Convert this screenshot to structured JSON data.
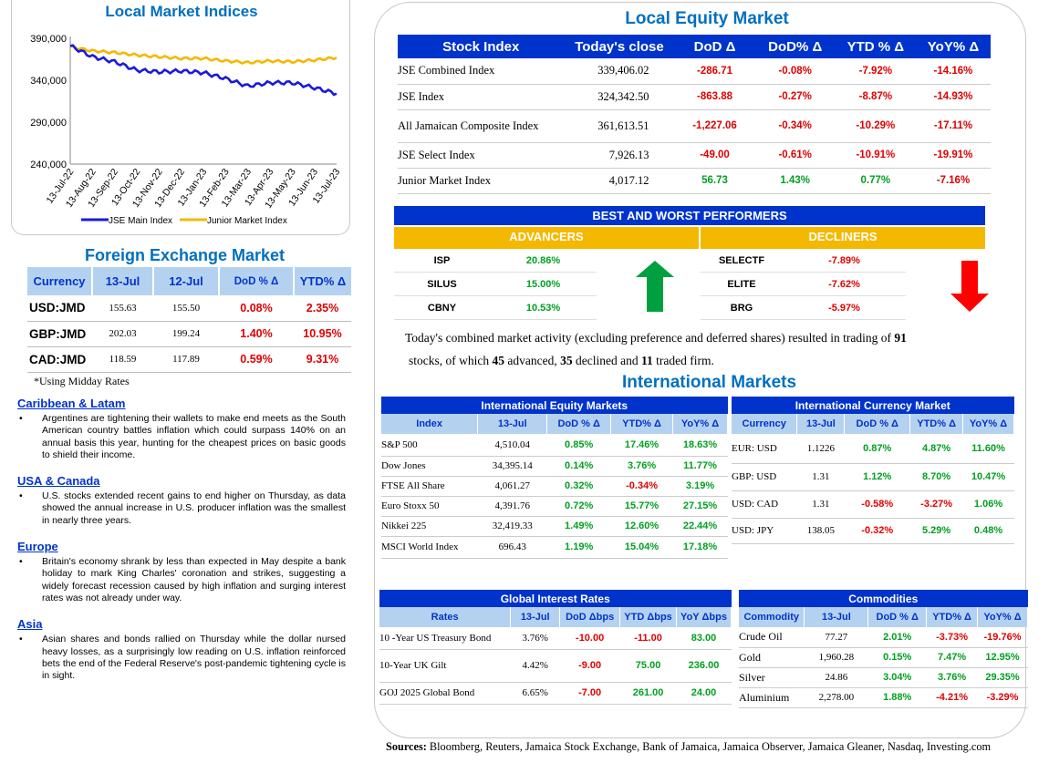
{
  "local_indices": {
    "title": "Local Market Indices",
    "yticks": [
      "390,000",
      "340,000",
      "290,000",
      "240,000"
    ],
    "xticks": [
      "13-Jul-22",
      "13-Aug-22",
      "13-Sep-22",
      "13-Oct-22",
      "13-Nov-22",
      "13-Dec-22",
      "13-Jan-23",
      "13-Feb-23",
      "13-Mar-23",
      "13-Apr-23",
      "13-May-23",
      "13-Jun-23",
      "13-Jul-23"
    ],
    "legend": [
      "JSE Main Index",
      "Junior Market Index"
    ],
    "colors": {
      "jse": "#1a1adc",
      "junior": "#f5b800"
    }
  },
  "chart_data": {
    "type": "line",
    "title": "Local Market Indices",
    "ylim": [
      240000,
      390000
    ],
    "categories": [
      "13-Jul-22",
      "13-Aug-22",
      "13-Sep-22",
      "13-Oct-22",
      "13-Nov-22",
      "13-Dec-22",
      "13-Jan-23",
      "13-Feb-23",
      "13-Mar-23",
      "13-Apr-23",
      "13-May-23",
      "13-Jun-23",
      "13-Jul-23"
    ],
    "series": [
      {
        "name": "JSE Main Index",
        "values": [
          381000,
          368000,
          362000,
          352000,
          350000,
          351000,
          349000,
          342000,
          333000,
          337000,
          337000,
          331000,
          324000
        ]
      },
      {
        "name": "Junior Market Index",
        "values": [
          380000,
          375000,
          373000,
          370000,
          368000,
          366000,
          366000,
          363000,
          361000,
          363000,
          362000,
          364000,
          367000
        ]
      }
    ]
  },
  "fx": {
    "title": "Foreign Exchange Market",
    "headers": [
      "Currency",
      "13-Jul",
      "12-Jul",
      "DoD % Δ",
      "YTD% Δ"
    ],
    "rows": [
      {
        "cur": "USD:JMD",
        "d1": "155.63",
        "d2": "155.50",
        "dod": "0.08%",
        "ytd": "2.35%"
      },
      {
        "cur": "GBP:JMD",
        "d1": "202.03",
        "d2": "199.24",
        "dod": "1.40%",
        "ytd": "10.95%"
      },
      {
        "cur": "CAD:JMD",
        "d1": "118.59",
        "d2": "117.89",
        "dod": "0.59%",
        "ytd": "9.31%"
      }
    ],
    "note": "*Using Midday Rates"
  },
  "news": [
    {
      "heading": "Caribbean & Latam",
      "bullet": "Argentines are tightening their wallets to make end meets as the South American country battles inflation which could surpass 140% on an annual basis this year, hunting for the cheapest prices on basic goods to shield their income."
    },
    {
      "heading": "USA & Canada",
      "bullet": "U.S. stocks extended recent gains to end higher on Thursday, as data showed the annual increase in U.S. producer inflation was the smallest in nearly three years."
    },
    {
      "heading": "Europe",
      "bullet": "Britain's economy shrank by less than expected in May despite a bank holiday to mark King Charles' coronation and strikes, suggesting a widely forecast recession caused by high inflation and surging interest rates was not already under way."
    },
    {
      "heading": "Asia",
      "bullet": "Asian shares and bonds rallied on Thursday while the dollar nursed heavy losses, as a surprisingly low reading on U.S. inflation reinforced bets the end of the Federal Reserve's post-pandemic tightening cycle is in sight."
    }
  ],
  "equity": {
    "title": "Local Equity Market",
    "headers": [
      "Stock Index",
      "Today's close",
      "DoD  Δ",
      "DoD% Δ",
      "YTD % Δ",
      "YoY% Δ"
    ],
    "rows": [
      {
        "name": "JSE Combined Index",
        "close": "339,406.02",
        "dod": "-286.71",
        "dodp": "-0.08%",
        "ytd": "-7.92%",
        "yoy": "-14.16%"
      },
      {
        "name": "JSE Index",
        "close": "324,342.50",
        "dod": "-863.88",
        "dodp": "-0.27%",
        "ytd": "-8.87%",
        "yoy": "-14.93%"
      },
      {
        "name": "All Jamaican Composite Index",
        "close": "361,613.51",
        "dod": "-1,227.06",
        "dodp": "-0.34%",
        "ytd": "-10.29%",
        "yoy": "-17.11%"
      },
      {
        "name": "JSE Select Index",
        "close": "7,926.13",
        "dod": "-49.00",
        "dodp": "-0.61%",
        "ytd": "-10.91%",
        "yoy": "-19.91%"
      },
      {
        "name": "Junior Market Index",
        "close": "4,017.12",
        "dod": "56.73",
        "dodp": "1.43%",
        "ytd": "0.77%",
        "yoy": "-7.16%"
      }
    ],
    "row_colors": [
      [
        "red",
        "red",
        "red",
        "red"
      ],
      [
        "red",
        "red",
        "red",
        "red"
      ],
      [
        "red",
        "red",
        "red",
        "red"
      ],
      [
        "red",
        "red",
        "red",
        "red"
      ],
      [
        "green",
        "green",
        "green",
        "red"
      ]
    ]
  },
  "performers": {
    "title": "BEST AND WORST PERFORMERS",
    "advancers_label": "ADVANCERS",
    "decliners_label": "DECLINERS",
    "advancers": [
      {
        "ticker": "ISP",
        "pct": "20.86%"
      },
      {
        "ticker": "SILUS",
        "pct": "15.00%"
      },
      {
        "ticker": "CBNY",
        "pct": "10.53%"
      }
    ],
    "decliners": [
      {
        "ticker": "SELECTF",
        "pct": "-7.89%"
      },
      {
        "ticker": "ELITE",
        "pct": "-7.62%"
      },
      {
        "ticker": "BRG",
        "pct": "-5.97%"
      }
    ]
  },
  "summary": {
    "line1_a": "Today's combined market activity (excluding preference and deferred shares) resulted in trading of ",
    "total": "91",
    "line2_a": "stocks, of which ",
    "adv": "45",
    "line2_b": " advanced, ",
    "dec": "35",
    "line2_c": " declined and ",
    "firm": "11",
    "line2_d": " traded firm."
  },
  "intl_title": "International Markets",
  "intl_equity": {
    "title": "International Equity Markets",
    "headers": [
      "Index",
      "13-Jul",
      "DoD % Δ",
      "YTD% Δ",
      "YoY% Δ"
    ],
    "rows": [
      {
        "name": "S&P 500",
        "val": "4,510.04",
        "dod": "0.85%",
        "ytd": "17.46%",
        "yoy": "18.63%"
      },
      {
        "name": "Dow Jones",
        "val": "34,395.14",
        "dod": "0.14%",
        "ytd": "3.76%",
        "yoy": "11.77%"
      },
      {
        "name": "FTSE All Share",
        "val": "4,061.27",
        "dod": "0.32%",
        "ytd": "-0.34%",
        "yoy": "3.19%"
      },
      {
        "name": "Euro Stoxx 50",
        "val": "4,391.76",
        "dod": "0.72%",
        "ytd": "15.77%",
        "yoy": "27.15%"
      },
      {
        "name": "Nikkei 225",
        "val": "32,419.33",
        "dod": "1.49%",
        "ytd": "12.60%",
        "yoy": "22.44%"
      },
      {
        "name": "MSCI World Index",
        "val": "696.43",
        "dod": "1.19%",
        "ytd": "15.04%",
        "yoy": "17.18%"
      }
    ]
  },
  "intl_fx": {
    "title": "International Currency Market",
    "headers": [
      "Currency",
      "13-Jul",
      "DoD % Δ",
      "YTD% Δ",
      "YoY% Δ"
    ],
    "rows": [
      {
        "name": "EUR: USD",
        "val": "1.1226",
        "dod": "0.87%",
        "ytd": "4.87%",
        "yoy": "11.60%"
      },
      {
        "name": "GBP: USD",
        "val": "1.31",
        "dod": "1.12%",
        "ytd": "8.70%",
        "yoy": "10.47%"
      },
      {
        "name": "USD: CAD",
        "val": "1.31",
        "dod": "-0.58%",
        "ytd": "-3.27%",
        "yoy": "1.06%"
      },
      {
        "name": "USD: JPY",
        "val": "138.05",
        "dod": "-0.32%",
        "ytd": "5.29%",
        "yoy": "0.48%"
      }
    ]
  },
  "rates": {
    "title": "Global Interest Rates",
    "headers": [
      "Rates",
      "13-Jul",
      "DoD Δbps",
      "YTD Δbps",
      "YoY Δbps"
    ],
    "rows": [
      {
        "name": "10 -Year US Treasury Bond",
        "val": "3.76%",
        "dod": "-10.00",
        "ytd": "-11.00",
        "yoy": "83.00"
      },
      {
        "name": "10-Year UK Gilt",
        "val": "4.42%",
        "dod": "-9.00",
        "ytd": "75.00",
        "yoy": "236.00"
      },
      {
        "name": "GOJ 2025 Global Bond",
        "val": "6.65%",
        "dod": "-7.00",
        "ytd": "261.00",
        "yoy": "24.00"
      }
    ]
  },
  "commodities": {
    "title": "Commodities",
    "headers": [
      "Commodity",
      "13-Jul",
      "DoD % Δ",
      "YTD% Δ",
      "YoY% Δ"
    ],
    "rows": [
      {
        "name": "Crude Oil",
        "val": "77.27",
        "dod": "2.01%",
        "ytd": "-3.73%",
        "yoy": "-19.76%"
      },
      {
        "name": "Gold",
        "val": "1,960.28",
        "dod": "0.15%",
        "ytd": "7.47%",
        "yoy": "12.95%"
      },
      {
        "name": "Silver",
        "val": "24.86",
        "dod": "3.04%",
        "ytd": "3.76%",
        "yoy": "29.35%"
      },
      {
        "name": "Aluminium",
        "val": "2,278.00",
        "dod": "1.88%",
        "ytd": "-4.21%",
        "yoy": "-3.29%"
      }
    ]
  },
  "sources": {
    "label": "Sources:",
    "text": " Bloomberg, Reuters, Jamaica Stock Exchange, Bank of Jamaica, Jamaica Observer, Jamaica Gleaner, Nasdaq, Investing.com"
  }
}
